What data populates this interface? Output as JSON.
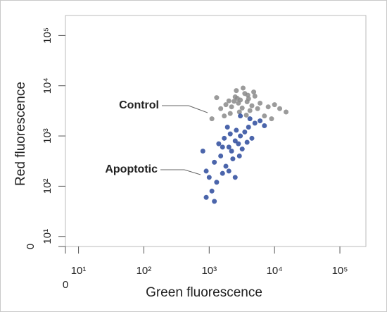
{
  "chart_data": {
    "type": "scatter",
    "xlabel": "Green fluorescence",
    "ylabel": "Red fluorescence",
    "xscale": "symlog",
    "yscale": "symlog",
    "xlim": [
      0,
      250000
    ],
    "ylim": [
      0,
      250000
    ],
    "xticks": [
      0,
      {
        "value": 10,
        "label": "10¹"
      },
      {
        "value": 100,
        "label": "10²"
      },
      {
        "value": 1000,
        "label": "10³"
      },
      {
        "value": 10000,
        "label": "10⁴"
      },
      {
        "value": 100000,
        "label": "10⁵"
      }
    ],
    "yticks": [
      0,
      {
        "value": 10,
        "label": "10¹"
      },
      {
        "value": 100,
        "label": "10²"
      },
      {
        "value": 1000,
        "label": "10³"
      },
      {
        "value": 10000,
        "label": "10⁴"
      },
      {
        "value": 100000,
        "label": "10⁵"
      }
    ],
    "series": [
      {
        "name": "Control",
        "color": "#8a8a8a",
        "x": [
          1500,
          1800,
          2000,
          2200,
          2500,
          2800,
          3000,
          3200,
          3500,
          3800,
          4000,
          4500,
          5000,
          2600,
          3300,
          2100,
          1700,
          2900,
          4200,
          6000,
          8000,
          10000,
          12000,
          15000,
          7000,
          9000,
          1300,
          1100,
          3700,
          2400,
          5500,
          4800,
          3900,
          2700
        ],
        "values": [
          3500,
          4200,
          5000,
          3800,
          6000,
          4500,
          5200,
          3600,
          7000,
          4800,
          5500,
          4000,
          6200,
          8000,
          9000,
          2800,
          2500,
          3000,
          3200,
          4500,
          3800,
          4200,
          3500,
          3000,
          2500,
          2200,
          5800,
          2200,
          2600,
          4900,
          3500,
          7500,
          6500,
          5600
        ]
      },
      {
        "name": "Apoptotic",
        "color": "#2b4a9c",
        "x": [
          1000,
          1200,
          1500,
          1800,
          2000,
          2200,
          2500,
          2800,
          3000,
          3500,
          4000,
          4500,
          5000,
          6000,
          7000,
          2000,
          2300,
          1600,
          1300,
          1100,
          900,
          800,
          1400,
          1700,
          2600,
          3200,
          3800,
          2900,
          2100,
          1900,
          3000,
          1200,
          900,
          2500,
          4200,
          1600
        ],
        "values": [
          150,
          300,
          400,
          250,
          600,
          500,
          800,
          700,
          1000,
          1200,
          1500,
          900,
          1800,
          2000,
          1600,
          200,
          350,
          180,
          120,
          80,
          200,
          500,
          700,
          900,
          1300,
          550,
          750,
          400,
          1100,
          1500,
          2500,
          50,
          60,
          150,
          2200,
          600
        ]
      }
    ]
  }
}
